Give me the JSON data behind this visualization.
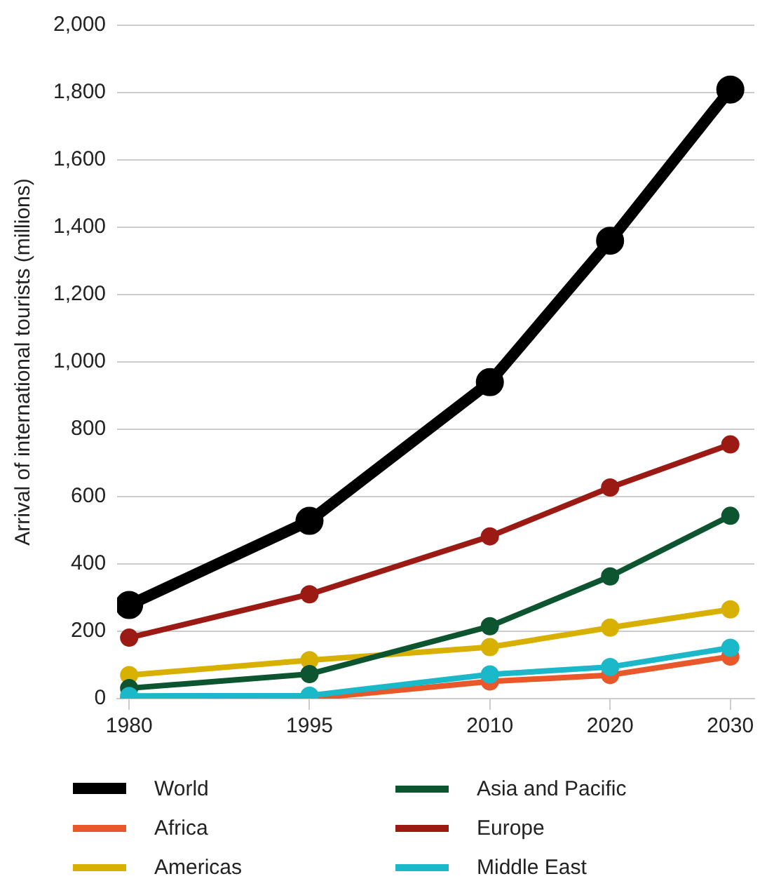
{
  "chart_data": {
    "type": "line",
    "ylabel": "Arrival of international tourists (millions)",
    "x": [
      1980,
      1995,
      2010,
      2020,
      2030
    ],
    "series": [
      {
        "name": "World",
        "color": "#000000",
        "values": [
          278,
          528,
          940,
          1360,
          1809
        ]
      },
      {
        "name": "Africa",
        "color": "#e8582a",
        "values": [
          0,
          0,
          51,
          70,
          125
        ]
      },
      {
        "name": "Americas",
        "color": "#d8b000",
        "values": [
          70,
          114,
          153,
          211,
          265
        ]
      },
      {
        "name": "Asia and Pacific",
        "color": "#0d5530",
        "values": [
          31,
          73,
          215,
          363,
          543
        ]
      },
      {
        "name": "Europe",
        "color": "#9b1b14",
        "values": [
          181,
          310,
          482,
          627,
          755
        ]
      },
      {
        "name": "Middle East",
        "color": "#1ab8c8",
        "values": [
          8,
          9,
          72,
          94,
          151
        ]
      }
    ],
    "xlim": [
      1979,
      2032
    ],
    "xticks": [
      1980,
      1995,
      2010,
      2020,
      2030
    ],
    "ylim": [
      0,
      2000
    ],
    "yticks": [
      0,
      200,
      400,
      600,
      800,
      {
        "value": 1000,
        "label": "1,000"
      },
      {
        "value": 1200,
        "label": "1,200"
      },
      {
        "value": 1400,
        "label": "1,400"
      },
      {
        "value": 1600,
        "label": "1,600"
      },
      {
        "value": 1800,
        "label": "1,800"
      },
      {
        "value": 2000,
        "label": "2,000"
      }
    ],
    "grid": "y",
    "legend": "bottom",
    "marker": "circle",
    "line_style": "solid"
  }
}
